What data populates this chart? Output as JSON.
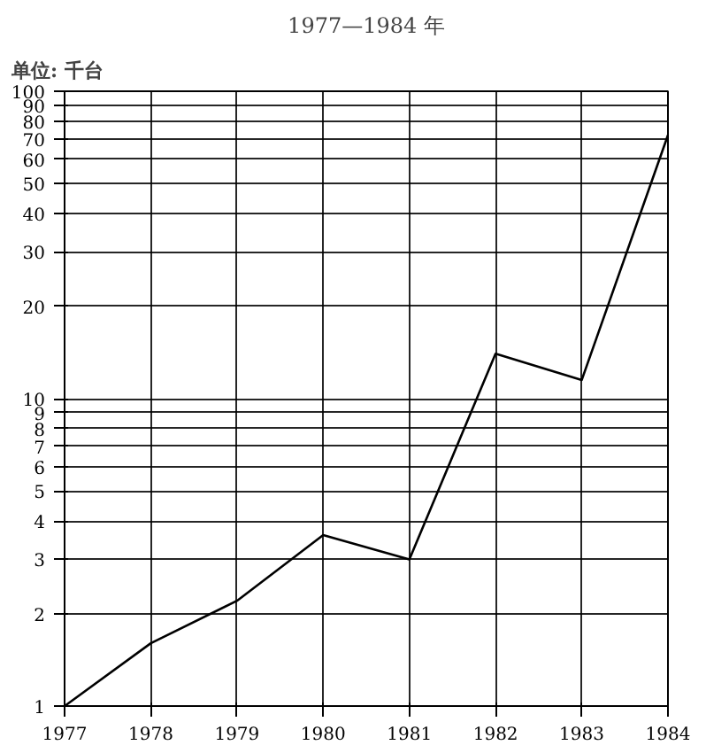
{
  "chart_data": {
    "type": "line",
    "title": "1977—1984 年",
    "ylabel": "单位: 千台",
    "x": [
      1977,
      1978,
      1979,
      1980,
      1981,
      1982,
      1983,
      1984
    ],
    "series": [
      {
        "color": "#000000",
        "values": [
          1,
          1.6,
          2.2,
          3.6,
          3,
          14,
          11.5,
          72
        ]
      }
    ],
    "log": "y",
    "xlim": [
      1977,
      1984
    ],
    "ylim": [
      1,
      100
    ],
    "xticks": [
      1977,
      1978,
      1979,
      1980,
      1981,
      1982,
      1983,
      1984
    ],
    "yticks": [
      1,
      2,
      3,
      4,
      5,
      6,
      7,
      8,
      9,
      10,
      20,
      30,
      40,
      50,
      60,
      70,
      80,
      90,
      100
    ],
    "grid": true,
    "marker": "none",
    "line_style": "solid"
  }
}
